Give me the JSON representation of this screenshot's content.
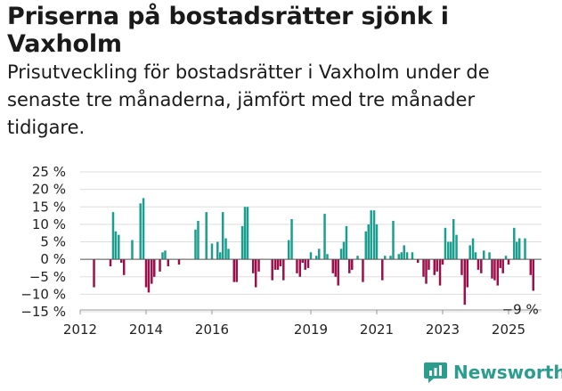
{
  "title": "Priserna på bostadsrätter sjönk i Vaxholm",
  "subtitle": "Prisutveckling för bostadsrätter i Vaxholm under de senaste tre månaderna, jämfört med tre månader tidigare.",
  "brand": {
    "name": "Newsworthy",
    "color": "#2a9d8f"
  },
  "colors": {
    "positive": "#1a9e8f",
    "negative": "#9c0f4a",
    "grid": "#dddddd"
  },
  "chart_data": {
    "type": "bar",
    "title": "Priserna på bostadsrätter sjönk i Vaxholm",
    "ylabel": "",
    "xlabel": "",
    "ylim": [
      -15,
      25
    ],
    "y_ticks": [
      25,
      20,
      15,
      10,
      5,
      0,
      -5,
      -10,
      -15
    ],
    "y_tick_labels": [
      "25 %",
      "20 %",
      "15 %",
      "10 %",
      "5 %",
      "0 %",
      "−5 %",
      "−10 %",
      "−15 %"
    ],
    "x_ticks": [
      2012,
      2014,
      2016,
      2019,
      2021,
      2023,
      2025
    ],
    "x_range": [
      2012,
      2026
    ],
    "annotation": {
      "label": "−9 %",
      "target": "last"
    },
    "series": [
      {
        "name": "Prisutveckling",
        "points": [
          {
            "t": 2012.42,
            "v": -8
          },
          {
            "t": 2012.92,
            "v": -2
          },
          {
            "t": 2013.0,
            "v": 13.5
          },
          {
            "t": 2013.08,
            "v": 8
          },
          {
            "t": 2013.17,
            "v": 7
          },
          {
            "t": 2013.25,
            "v": -1
          },
          {
            "t": 2013.33,
            "v": -4.5
          },
          {
            "t": 2013.58,
            "v": 5.5
          },
          {
            "t": 2013.83,
            "v": 16
          },
          {
            "t": 2013.92,
            "v": 17.5
          },
          {
            "t": 2014.0,
            "v": -8
          },
          {
            "t": 2014.08,
            "v": -9.5
          },
          {
            "t": 2014.17,
            "v": -7
          },
          {
            "t": 2014.25,
            "v": -5
          },
          {
            "t": 2014.42,
            "v": -3.5
          },
          {
            "t": 2014.5,
            "v": 2
          },
          {
            "t": 2014.58,
            "v": 2.5
          },
          {
            "t": 2014.67,
            "v": -2
          },
          {
            "t": 2015.0,
            "v": -1.5
          },
          {
            "t": 2015.5,
            "v": 8.5
          },
          {
            "t": 2015.58,
            "v": 11
          },
          {
            "t": 2015.83,
            "v": 13.5
          },
          {
            "t": 2016.0,
            "v": 4.5
          },
          {
            "t": 2016.17,
            "v": 5
          },
          {
            "t": 2016.25,
            "v": 2
          },
          {
            "t": 2016.33,
            "v": 13.5
          },
          {
            "t": 2016.42,
            "v": 6
          },
          {
            "t": 2016.5,
            "v": 3
          },
          {
            "t": 2016.67,
            "v": -6.5
          },
          {
            "t": 2016.75,
            "v": -6.5
          },
          {
            "t": 2016.92,
            "v": 9.5
          },
          {
            "t": 2017.0,
            "v": 15
          },
          {
            "t": 2017.08,
            "v": 15
          },
          {
            "t": 2017.25,
            "v": -4
          },
          {
            "t": 2017.33,
            "v": -8
          },
          {
            "t": 2017.42,
            "v": -3.5
          },
          {
            "t": 2017.83,
            "v": -6
          },
          {
            "t": 2017.92,
            "v": -3
          },
          {
            "t": 2018.0,
            "v": -3
          },
          {
            "t": 2018.08,
            "v": -2
          },
          {
            "t": 2018.17,
            "v": -6
          },
          {
            "t": 2018.33,
            "v": 5.5
          },
          {
            "t": 2018.42,
            "v": 11.5
          },
          {
            "t": 2018.58,
            "v": -4
          },
          {
            "t": 2018.67,
            "v": -5
          },
          {
            "t": 2018.75,
            "v": -1
          },
          {
            "t": 2018.83,
            "v": -3
          },
          {
            "t": 2018.92,
            "v": -2.5
          },
          {
            "t": 2019.0,
            "v": 2
          },
          {
            "t": 2019.17,
            "v": 1
          },
          {
            "t": 2019.25,
            "v": 3
          },
          {
            "t": 2019.42,
            "v": 13
          },
          {
            "t": 2019.5,
            "v": 1.5
          },
          {
            "t": 2019.67,
            "v": -4
          },
          {
            "t": 2019.75,
            "v": -5
          },
          {
            "t": 2019.83,
            "v": -7.5
          },
          {
            "t": 2019.92,
            "v": 3
          },
          {
            "t": 2020.0,
            "v": 5
          },
          {
            "t": 2020.08,
            "v": 9.5
          },
          {
            "t": 2020.17,
            "v": -4
          },
          {
            "t": 2020.25,
            "v": -3
          },
          {
            "t": 2020.42,
            "v": 1
          },
          {
            "t": 2020.58,
            "v": -6.5
          },
          {
            "t": 2020.67,
            "v": 8
          },
          {
            "t": 2020.75,
            "v": 10
          },
          {
            "t": 2020.83,
            "v": 14
          },
          {
            "t": 2020.92,
            "v": 14
          },
          {
            "t": 2021.0,
            "v": 10
          },
          {
            "t": 2021.17,
            "v": -6
          },
          {
            "t": 2021.25,
            "v": 1
          },
          {
            "t": 2021.42,
            "v": 1
          },
          {
            "t": 2021.5,
            "v": 11
          },
          {
            "t": 2021.67,
            "v": 1.5
          },
          {
            "t": 2021.75,
            "v": 2
          },
          {
            "t": 2021.83,
            "v": 4
          },
          {
            "t": 2021.92,
            "v": 2
          },
          {
            "t": 2022.08,
            "v": 2
          },
          {
            "t": 2022.25,
            "v": -1
          },
          {
            "t": 2022.42,
            "v": -5
          },
          {
            "t": 2022.5,
            "v": -7
          },
          {
            "t": 2022.58,
            "v": -3
          },
          {
            "t": 2022.75,
            "v": -4.5
          },
          {
            "t": 2022.83,
            "v": -3.5
          },
          {
            "t": 2022.92,
            "v": -7.5
          },
          {
            "t": 2023.0,
            "v": -1.5
          },
          {
            "t": 2023.08,
            "v": 9
          },
          {
            "t": 2023.17,
            "v": 5
          },
          {
            "t": 2023.25,
            "v": 5
          },
          {
            "t": 2023.33,
            "v": 11.5
          },
          {
            "t": 2023.42,
            "v": 7
          },
          {
            "t": 2023.58,
            "v": -4.5
          },
          {
            "t": 2023.67,
            "v": -13
          },
          {
            "t": 2023.75,
            "v": -8
          },
          {
            "t": 2023.83,
            "v": 4
          },
          {
            "t": 2023.92,
            "v": 6
          },
          {
            "t": 2024.0,
            "v": 2
          },
          {
            "t": 2024.08,
            "v": -3
          },
          {
            "t": 2024.17,
            "v": -4
          },
          {
            "t": 2024.25,
            "v": 2.5
          },
          {
            "t": 2024.42,
            "v": 2
          },
          {
            "t": 2024.5,
            "v": -5.5
          },
          {
            "t": 2024.58,
            "v": -6
          },
          {
            "t": 2024.67,
            "v": -7.5
          },
          {
            "t": 2024.75,
            "v": -2.5
          },
          {
            "t": 2024.83,
            "v": -4
          },
          {
            "t": 2024.92,
            "v": 1
          },
          {
            "t": 2025.0,
            "v": -1.5
          },
          {
            "t": 2025.17,
            "v": 9
          },
          {
            "t": 2025.25,
            "v": 5
          },
          {
            "t": 2025.33,
            "v": 6
          },
          {
            "t": 2025.5,
            "v": 6
          },
          {
            "t": 2025.67,
            "v": -4.5
          },
          {
            "t": 2025.75,
            "v": -9
          }
        ]
      }
    ]
  }
}
